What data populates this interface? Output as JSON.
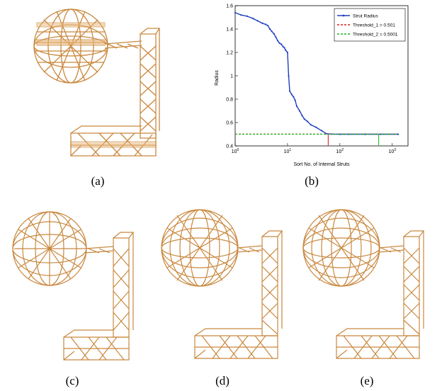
{
  "captions": {
    "a": "(a)",
    "b": "(b)",
    "c": "(c)",
    "d": "(d)",
    "e": "(e)"
  },
  "colors": {
    "strut": "#c9883f",
    "strut_light": "#e8b77a",
    "series": "#1f3fbf",
    "threshold1": "#e02020",
    "threshold2": "#20b020",
    "marker_red": "#e04040",
    "marker_green": "#40c040"
  },
  "chart_data": {
    "type": "line",
    "xlabel": "Sort No. of Internal Struts",
    "ylabel": "Radius",
    "xscale": "log",
    "xlim": [
      1,
      2000
    ],
    "ylim": [
      0.4,
      1.6
    ],
    "xtick_labels": [
      "10^0",
      "10^1",
      "10^2",
      "10^3"
    ],
    "ytick_labels": [
      "0.4",
      "0.6",
      "0.8",
      "1",
      "1.2",
      "1.4",
      "1.6"
    ],
    "legend_position": "top-right",
    "legend": [
      {
        "label": "Strut Radius"
      },
      {
        "label": "Threshold_1 = 0.501"
      },
      {
        "label": "Threshold_2 = 0.5001"
      }
    ],
    "series": [
      {
        "name": "Strut Radius",
        "x": [
          1,
          1.3,
          1.7,
          2.2,
          2.7,
          3.3,
          3.8,
          4.2,
          4.6,
          5.0,
          5.5,
          6.0,
          6.5,
          7.0,
          7.6,
          8.2,
          8.7,
          9.2,
          10.0,
          10.5,
          11,
          12,
          13,
          14,
          15,
          17,
          19,
          21,
          24,
          28,
          35,
          45,
          55,
          70,
          100,
          150,
          300,
          600,
          1300
        ],
        "y": [
          1.54,
          1.52,
          1.51,
          1.49,
          1.47,
          1.45,
          1.44,
          1.43,
          1.4,
          1.38,
          1.36,
          1.33,
          1.3,
          1.28,
          1.27,
          1.25,
          1.24,
          1.22,
          1.2,
          1.0,
          0.87,
          0.84,
          0.82,
          0.79,
          0.74,
          0.7,
          0.66,
          0.63,
          0.61,
          0.58,
          0.56,
          0.53,
          0.505,
          0.501,
          0.5,
          0.5,
          0.5,
          0.5,
          0.5
        ]
      },
      {
        "name": "Threshold_1 = 0.501",
        "x": [
          1,
          1300
        ],
        "y": [
          0.501,
          0.501
        ]
      },
      {
        "name": "Threshold_2 = 0.5001",
        "x": [
          1,
          1300
        ],
        "y": [
          0.5001,
          0.5001
        ]
      }
    ],
    "markers": [
      {
        "x": 60,
        "color": "red"
      },
      {
        "x": 550,
        "color": "green"
      }
    ]
  }
}
